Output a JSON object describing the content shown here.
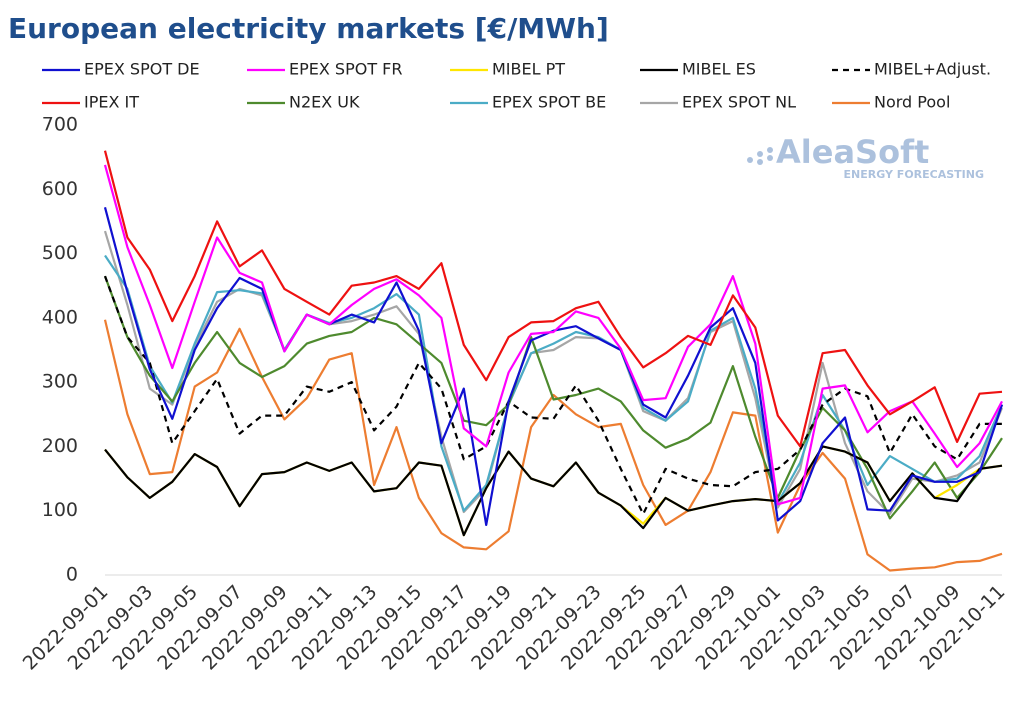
{
  "chart_data": {
    "type": "line",
    "title": "European electricity markets [€/MWh]",
    "watermark": "AleaSoft",
    "watermark_subtitle": "ENERGY FORECASTING",
    "categories": [
      "2022-09-01",
      null,
      "2022-09-03",
      null,
      "2022-09-05",
      null,
      "2022-09-07",
      null,
      "2022-09-09",
      null,
      "2022-09-11",
      null,
      "2022-09-13",
      null,
      "2022-09-15",
      null,
      "2022-09-17",
      null,
      "2022-09-19",
      null,
      "2022-09-21",
      null,
      "2022-09-23",
      null,
      "2022-09-25",
      null,
      "2022-09-27",
      null,
      "2022-09-29",
      null,
      "2022-10-01",
      null,
      "2022-10-03",
      null,
      "2022-10-05",
      null,
      "2022-10-07",
      null,
      "2022-10-09",
      null,
      "2022-10-11"
    ],
    "ylim": [
      0,
      700
    ],
    "yticks": [
      0,
      100,
      200,
      300,
      400,
      500,
      600,
      700
    ],
    "grid": false,
    "series": [
      {
        "name": "EPEX SPOT DE",
        "color": "#1010d0",
        "values": [
          572,
          440,
          320,
          243,
          350,
          415,
          462,
          445,
          348,
          405,
          390,
          405,
          393,
          455,
          380,
          205,
          290,
          78,
          270,
          365,
          380,
          387,
          368,
          350,
          265,
          245,
          310,
          385,
          415,
          330,
          85,
          115,
          205,
          245,
          102,
          100,
          155,
          145,
          145,
          160,
          265
        ]
      },
      {
        "name": "EPEX SPOT FR",
        "color": "#ff00ff",
        "values": [
          638,
          510,
          420,
          322,
          425,
          525,
          470,
          455,
          348,
          405,
          390,
          420,
          445,
          460,
          435,
          400,
          228,
          200,
          315,
          375,
          378,
          410,
          400,
          352,
          272,
          275,
          355,
          390,
          465,
          360,
          110,
          120,
          290,
          295,
          222,
          255,
          270,
          220,
          168,
          205,
          270
        ]
      },
      {
        "name": "MIBEL PT",
        "color": "#ffe600",
        "values": [
          195,
          152,
          120,
          145,
          188,
          168,
          107,
          157,
          160,
          175,
          162,
          175,
          130,
          135,
          175,
          170,
          62,
          135,
          192,
          150,
          138,
          175,
          128,
          108,
          80,
          120,
          100,
          108,
          115,
          118,
          115,
          143,
          200,
          192,
          175,
          115,
          158,
          120,
          140,
          165,
          170
        ]
      },
      {
        "name": "MIBEL ES",
        "color": "#000000",
        "values": [
          195,
          152,
          120,
          145,
          188,
          168,
          107,
          157,
          160,
          175,
          162,
          175,
          130,
          135,
          175,
          170,
          62,
          135,
          192,
          150,
          138,
          175,
          128,
          108,
          73,
          120,
          100,
          108,
          115,
          118,
          115,
          143,
          200,
          192,
          175,
          115,
          158,
          120,
          115,
          165,
          170
        ]
      },
      {
        "name": "MIBEL+Adjust.",
        "color": "#000000",
        "dash": true,
        "values": [
          465,
          370,
          330,
          205,
          255,
          305,
          220,
          248,
          248,
          293,
          285,
          300,
          225,
          262,
          330,
          290,
          180,
          200,
          270,
          245,
          243,
          295,
          240,
          165,
          95,
          165,
          150,
          140,
          138,
          160,
          165,
          195,
          265,
          290,
          278,
          190,
          250,
          200,
          180,
          235,
          235
        ]
      },
      {
        "name": "IPEX IT",
        "color": "#ee1111",
        "values": [
          660,
          525,
          475,
          395,
          465,
          550,
          480,
          505,
          445,
          425,
          405,
          450,
          455,
          465,
          445,
          485,
          358,
          303,
          370,
          393,
          395,
          415,
          425,
          370,
          323,
          345,
          372,
          358,
          435,
          385,
          248,
          200,
          345,
          350,
          295,
          250,
          270,
          292,
          207,
          282,
          285
        ]
      },
      {
        "name": "N2EX UK",
        "color": "#4e8a2e",
        "values": [
          465,
          370,
          310,
          270,
          330,
          378,
          330,
          308,
          325,
          360,
          372,
          378,
          400,
          390,
          360,
          330,
          240,
          233,
          265,
          370,
          273,
          280,
          290,
          270,
          225,
          198,
          212,
          237,
          325,
          215,
          120,
          195,
          260,
          225,
          165,
          88,
          130,
          175,
          120,
          160,
          213
        ]
      },
      {
        "name": "EPEX SPOT BE",
        "color": "#4bacc6",
        "values": [
          497,
          445,
          325,
          268,
          360,
          440,
          443,
          438,
          350,
          405,
          392,
          400,
          415,
          437,
          405,
          200,
          100,
          140,
          265,
          345,
          360,
          378,
          370,
          350,
          260,
          240,
          270,
          380,
          400,
          290,
          112,
          175,
          280,
          225,
          140,
          185,
          165,
          145,
          150,
          185,
          265
        ]
      },
      {
        "name": "EPEX SPOT NL",
        "color": "#a6a6a6",
        "values": [
          535,
          420,
          290,
          265,
          355,
          425,
          445,
          435,
          350,
          405,
          390,
          395,
          405,
          418,
          375,
          215,
          98,
          135,
          265,
          345,
          350,
          370,
          368,
          350,
          255,
          240,
          275,
          378,
          395,
          275,
          105,
          165,
          330,
          205,
          130,
          95,
          150,
          145,
          155,
          175,
          260
        ]
      },
      {
        "name": "Nord Pool",
        "color": "#ed7d31",
        "values": [
          397,
          250,
          157,
          160,
          293,
          315,
          383,
          308,
          242,
          275,
          335,
          345,
          140,
          230,
          120,
          65,
          43,
          40,
          68,
          230,
          280,
          250,
          230,
          235,
          140,
          78,
          100,
          160,
          253,
          248,
          66,
          140,
          190,
          150,
          32,
          7,
          10,
          12,
          20,
          22,
          33
        ]
      }
    ]
  }
}
